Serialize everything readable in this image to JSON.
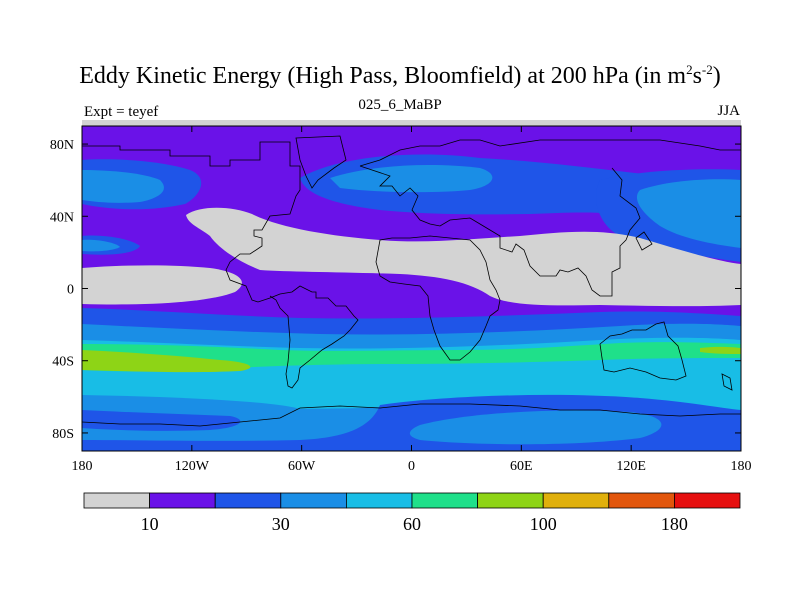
{
  "title_main": "Eddy Kinetic Energy (High Pass, Bloomfield) at 200 hPa (in m",
  "title_sup1": "2",
  "title_s": "s",
  "title_sup2": "-2",
  "title_close": ")",
  "subtitle": "025_6_MaBP",
  "left_label": "Expt = teyef",
  "right_label": "JJA",
  "colors": {
    "levels": [
      "#d3d3d3",
      "#6a12e8",
      "#1f55e8",
      "#1a8ee6",
      "#18bde6",
      "#1fe08a",
      "#8ed416",
      "#e0b00c",
      "#e2560c",
      "#e60f0f"
    ]
  },
  "colorbar": {
    "labels": [
      {
        "boundary": 1,
        "text": "10"
      },
      {
        "boundary": 3,
        "text": "30"
      },
      {
        "boundary": 5,
        "text": "60"
      },
      {
        "boundary": 7,
        "text": "100"
      },
      {
        "boundary": 9,
        "text": "180"
      }
    ]
  },
  "chart_data": {
    "type": "heatmap",
    "title": "Eddy Kinetic Energy (High Pass, Bloomfield) at 200 hPa (in m2s-2)",
    "subtitle": "025_6_MaBP",
    "x_ticks": [
      "180",
      "120W",
      "60W",
      "0",
      "60E",
      "120E",
      "180"
    ],
    "x_tick_values": [
      -180,
      -120,
      -60,
      0,
      60,
      120,
      180
    ],
    "y_ticks": [
      "80N",
      "40N",
      "0",
      "40S",
      "80S"
    ],
    "y_tick_values": [
      80,
      40,
      0,
      -40,
      -80
    ],
    "xlim": [
      -180,
      180
    ],
    "ylim": [
      -90,
      90
    ],
    "season": "JJA",
    "experiment": "teyef",
    "contour_levels": [
      10,
      30,
      60,
      100,
      180
    ]
  }
}
